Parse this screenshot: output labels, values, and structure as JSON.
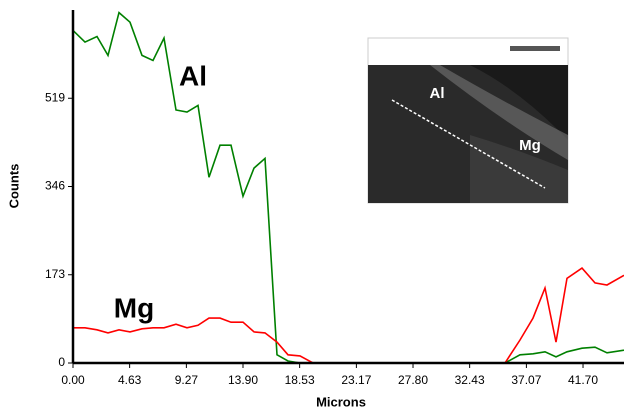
{
  "chart_data": {
    "type": "line",
    "x_label": "Microns",
    "y_label": "Counts",
    "xlim": [
      0,
      45.05
    ],
    "ylim": [
      0,
      692
    ],
    "xticks": [
      {
        "value": 0,
        "label": "0.00"
      },
      4.63,
      9.27,
      {
        "value": 13.9,
        "label": "13.90"
      },
      18.53,
      23.17,
      {
        "value": 27.8,
        "label": "27.80"
      },
      32.43,
      37.07,
      {
        "value": 41.7,
        "label": "41.70"
      }
    ],
    "yticks": [
      0,
      173,
      346,
      519
    ],
    "x": [
      0,
      0.98,
      1.96,
      2.86,
      3.76,
      4.66,
      5.64,
      6.54,
      7.44,
      8.42,
      9.32,
      10.22,
      11.12,
      12.02,
      12.92,
      13.9,
      14.8,
      15.7,
      16.68,
      17.58,
      18.56,
      19.62,
      35.32,
      36.55,
      37.61,
      38.59,
      39.49,
      40.39,
      41.62,
      42.68,
      43.66,
      45.05
    ],
    "series": [
      {
        "name": "Al",
        "color": "#008000",
        "values": [
          652,
          629,
          640,
          603,
          687,
          668,
          603,
          593,
          637,
          496,
          492,
          505,
          364,
          427,
          427,
          327,
          382,
          401,
          16,
          4,
          0,
          0,
          0,
          16,
          18,
          22,
          12,
          22,
          29,
          31,
          20,
          25
        ]
      },
      {
        "name": "Mg",
        "color": "#ff0000",
        "values": [
          69,
          69,
          65,
          59,
          65,
          61,
          67,
          69,
          69,
          76,
          69,
          74,
          88,
          88,
          80,
          80,
          61,
          59,
          41,
          16,
          14,
          0,
          0,
          45,
          88,
          147,
          41,
          166,
          186,
          157,
          153,
          172
        ]
      }
    ],
    "inset_labels": [
      "Al",
      "Mg"
    ]
  }
}
